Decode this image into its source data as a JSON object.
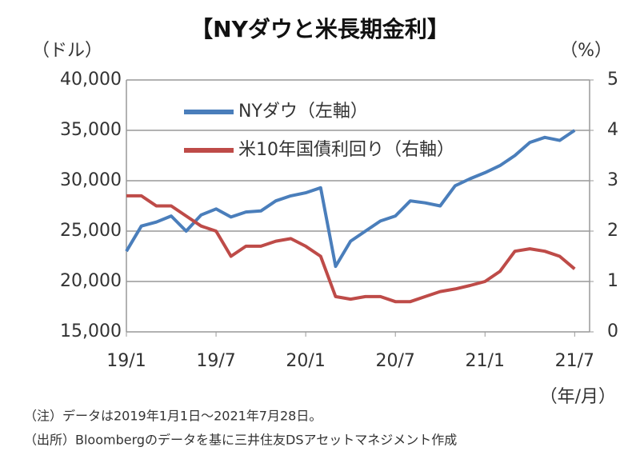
{
  "chart_data": {
    "type": "line",
    "title": "【NYダウと米長期金利】",
    "y_label": "（ドル）",
    "y2_label": "（%）",
    "x_label": "（年/月）",
    "notes": [
      "（注）データは2019年1月1日～2021年7月28日。",
      "（出所）Bloombergのデータを基に三井住友DSアセットマネジメント作成"
    ],
    "categories": [
      "19/1",
      null,
      null,
      null,
      null,
      null,
      "19/7",
      null,
      null,
      null,
      null,
      null,
      "20/1",
      null,
      null,
      null,
      null,
      null,
      "20/7",
      null,
      null,
      null,
      null,
      null,
      "21/1",
      null,
      null,
      null,
      null,
      null,
      "21/7"
    ],
    "series": [
      {
        "name": "NYダウ（左軸）",
        "color": "#4a7ebb",
        "axis": "y",
        "values": [
          23000,
          25500,
          25900,
          26500,
          25000,
          26600,
          27200,
          26400,
          26900,
          27000,
          28000,
          28500,
          28800,
          29300,
          21500,
          24000,
          25000,
          26000,
          26500,
          28000,
          27800,
          27500,
          29500,
          30200,
          30800,
          31500,
          32500,
          33800,
          34300,
          34000,
          35000
        ]
      },
      {
        "name": "米10年国債利回り（右軸）",
        "color": "#be4b48",
        "axis": "y2",
        "values": [
          2.7,
          2.7,
          2.5,
          2.5,
          2.3,
          2.1,
          2.0,
          1.5,
          1.7,
          1.7,
          1.8,
          1.85,
          1.7,
          1.5,
          0.7,
          0.65,
          0.7,
          0.7,
          0.6,
          0.6,
          0.7,
          0.8,
          0.85,
          0.92,
          1.0,
          1.2,
          1.6,
          1.65,
          1.6,
          1.5,
          1.25
        ]
      }
    ],
    "ylim": [
      15000,
      40000
    ],
    "yticks": [
      {
        "value": 15000,
        "label": "15,000"
      },
      {
        "value": 20000,
        "label": "20,000"
      },
      {
        "value": 25000,
        "label": "25,000"
      },
      {
        "value": 30000,
        "label": "30,000"
      },
      {
        "value": 35000,
        "label": "35,000"
      },
      {
        "value": 40000,
        "label": "40,000"
      }
    ],
    "y2lim": [
      0,
      5
    ],
    "y2ticks": [
      0,
      1,
      2,
      3,
      4,
      5
    ],
    "grid": true
  }
}
